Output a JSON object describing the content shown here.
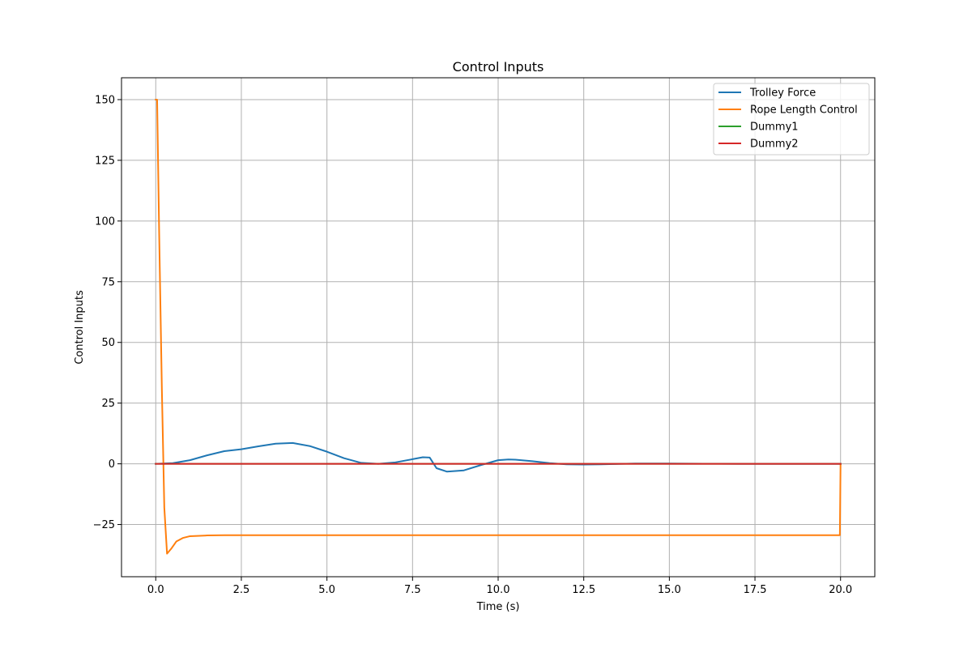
{
  "chart_data": {
    "type": "line",
    "title": "Control Inputs",
    "xlabel": "Time (s)",
    "ylabel": "Control Inputs",
    "xlim": [
      -1.0,
      21.0
    ],
    "ylim": [
      -46.5,
      159.0
    ],
    "xticks": [
      0.0,
      2.5,
      5.0,
      7.5,
      10.0,
      12.5,
      15.0,
      17.5,
      20.0
    ],
    "xtick_labels": [
      "0.0",
      "2.5",
      "5.0",
      "7.5",
      "10.0",
      "12.5",
      "15.0",
      "17.5",
      "20.0"
    ],
    "yticks": [
      -25,
      0,
      25,
      50,
      75,
      100,
      125,
      150
    ],
    "ytick_labels": [
      "−25",
      "0",
      "25",
      "50",
      "75",
      "100",
      "125",
      "150"
    ],
    "grid": true,
    "legend_position": "top-right",
    "series": [
      {
        "name": "Trolley Force",
        "color": "#1f77b4",
        "x": [
          0,
          0.5,
          1.0,
          1.5,
          2.0,
          2.5,
          3.0,
          3.5,
          4.0,
          4.5,
          5.0,
          5.5,
          6.0,
          6.5,
          7.0,
          7.5,
          7.8,
          8.0,
          8.2,
          8.5,
          9.0,
          9.5,
          10.0,
          10.3,
          10.5,
          11.0,
          11.5,
          12.0,
          12.5,
          13.0,
          14.0,
          15.0,
          16.0,
          17.0,
          18.0,
          19.0,
          20.0
        ],
        "y": [
          0,
          0.3,
          1.5,
          3.5,
          5.2,
          6.0,
          7.2,
          8.3,
          8.6,
          7.3,
          5.0,
          2.3,
          0.4,
          0.0,
          0.6,
          1.9,
          2.7,
          2.6,
          -1.8,
          -3.2,
          -2.7,
          -0.5,
          1.5,
          1.8,
          1.7,
          1.1,
          0.3,
          -0.2,
          -0.3,
          -0.2,
          0.1,
          0.1,
          0.05,
          0.0,
          0.0,
          0.0,
          0.0
        ]
      },
      {
        "name": "Rope Length Control",
        "color": "#ff7f0e",
        "x": [
          0,
          0.04,
          0.1,
          0.18,
          0.25,
          0.33,
          0.45,
          0.6,
          0.8,
          1.0,
          1.5,
          2.0,
          3.0,
          5.0,
          10.0,
          15.0,
          19.98,
          20.0
        ],
        "y": [
          150,
          150,
          95,
          30,
          -18,
          -37,
          -35,
          -32,
          -30.5,
          -29.8,
          -29.5,
          -29.4,
          -29.4,
          -29.4,
          -29.4,
          -29.4,
          -29.4,
          0
        ]
      },
      {
        "name": "Dummy1",
        "color": "#2ca02c",
        "x": [
          0,
          20
        ],
        "y": [
          0,
          0
        ]
      },
      {
        "name": "Dummy2",
        "color": "#d62728",
        "x": [
          0,
          20
        ],
        "y": [
          0,
          0
        ]
      }
    ]
  }
}
